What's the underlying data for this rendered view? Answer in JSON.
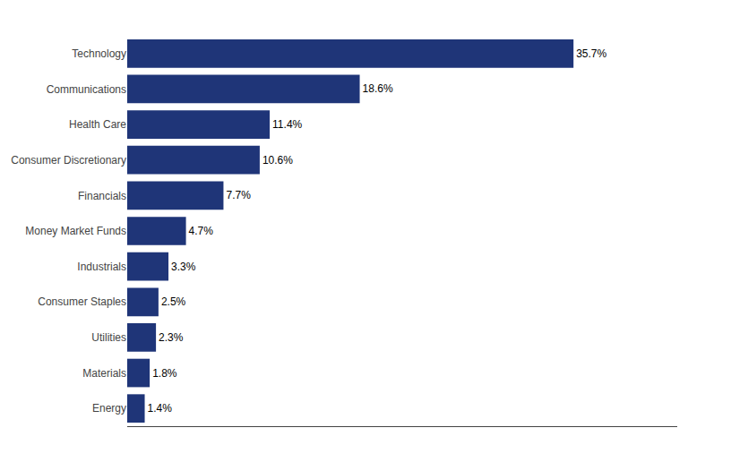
{
  "chart_data": {
    "type": "bar",
    "orientation": "horizontal",
    "categories": [
      "Technology",
      "Communications",
      "Health Care",
      "Consumer Discretionary",
      "Financials",
      "Money Market Funds",
      "Industrials",
      "Consumer Staples",
      "Utilities",
      "Materials",
      "Energy"
    ],
    "values": [
      35.7,
      18.6,
      11.4,
      10.6,
      7.7,
      4.7,
      3.3,
      2.5,
      2.3,
      1.8,
      1.4
    ],
    "value_labels": [
      "35.7%",
      "18.6%",
      "11.4%",
      "10.6%",
      "7.7%",
      "4.7%",
      "3.3%",
      "2.5%",
      "2.3%",
      "1.8%",
      "1.4%"
    ],
    "color": "#1F3578",
    "xlim": [
      0,
      44
    ],
    "grid": false,
    "data_labels": true,
    "tick_labels": "y"
  }
}
